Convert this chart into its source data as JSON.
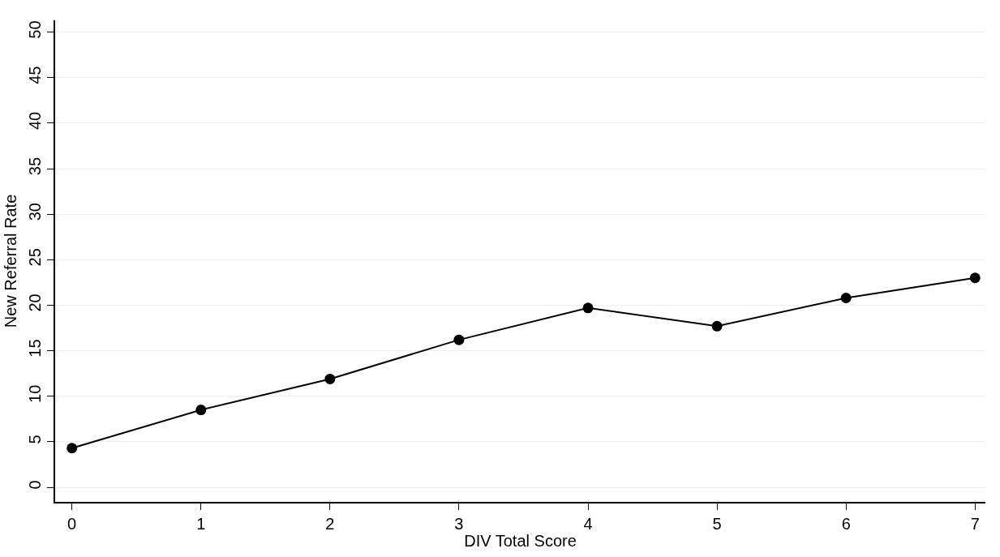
{
  "chart_data": {
    "type": "line",
    "xlabel": "DIV Total Score",
    "ylabel": "New Referral Rate",
    "x": [
      0,
      1,
      2,
      3,
      4,
      5,
      6,
      7
    ],
    "series": [
      {
        "color": "#000000",
        "values": [
          4.3,
          8.5,
          11.9,
          16.2,
          19.7,
          17.7,
          20.8,
          23.0
        ]
      }
    ],
    "xlim": [
      -0.13,
      7.08
    ],
    "xticks": [
      0,
      1,
      2,
      3,
      4,
      5,
      6,
      7
    ],
    "ylim": [
      -1.6,
      51.3
    ],
    "yticks": [
      0,
      5,
      10,
      15,
      20,
      25,
      30,
      35,
      40,
      45,
      50
    ],
    "grid": "y",
    "marker": "circle",
    "line_style": "solid"
  }
}
